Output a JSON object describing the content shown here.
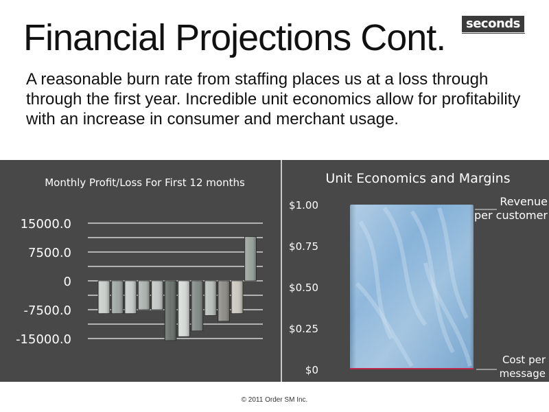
{
  "slide": {
    "title": "Financial Projections Cont.",
    "logo_text": "seconds",
    "body": "A reasonable burn rate from staffing places us at a loss through through the first year.  Incredible unit economics allow for profitability with an increase in consumer and merchant usage.",
    "footer": "© 2011 Order SM Inc."
  },
  "chart_data": [
    {
      "type": "bar",
      "title": "Monthly Profit/Loss For First 12 months",
      "categories": [
        "",
        "",
        "",
        "",
        "",
        "",
        "",
        "",
        "",
        "",
        "",
        ""
      ],
      "values": [
        -8500,
        -8500,
        -8500,
        -7500,
        -7500,
        -15500,
        -14500,
        -13000,
        -9000,
        -10500,
        -8500,
        11500
      ],
      "bar_colors": [
        "#c7ccc9",
        "#9aa39f",
        "#c5cac7",
        "#a9b0ac",
        "#c0c5c2",
        "#626b66",
        "#d5d9d6",
        "#7c8581",
        "#b7bdb9",
        "#898781",
        "#c9c6bd",
        "#959e98"
      ],
      "yticks": [
        "15000.0",
        "7500.0",
        "0",
        "-7500.0",
        "-15000.0"
      ],
      "ytick_values": [
        15000,
        7500,
        0,
        -7500,
        -15000
      ],
      "ylim": [
        -15000,
        15000
      ],
      "grid": true,
      "xlabel": "",
      "ylabel": ""
    },
    {
      "type": "bar",
      "title": "Unit Economics and Margins",
      "categories": [
        ""
      ],
      "series": [
        {
          "name": "Revenue per customer",
          "values": [
            1.0
          ]
        },
        {
          "name": "Cost per message",
          "values": [
            0.005
          ]
        }
      ],
      "yticks": [
        "$1.00",
        "$0.75",
        "$0.50",
        "$0.25",
        "$0"
      ],
      "ytick_values": [
        1.0,
        0.75,
        0.5,
        0.25,
        0
      ],
      "ylim": [
        0,
        1.0
      ],
      "grid": false,
      "annotations": [
        {
          "lines": [
            "Revenue",
            "per customer"
          ],
          "anchor": "Revenue per customer"
        },
        {
          "lines": [
            "Cost per",
            "message"
          ],
          "anchor": "Cost per message"
        }
      ],
      "bar_color": "#8fb4d6",
      "cost_color": "#c0244a"
    }
  ]
}
